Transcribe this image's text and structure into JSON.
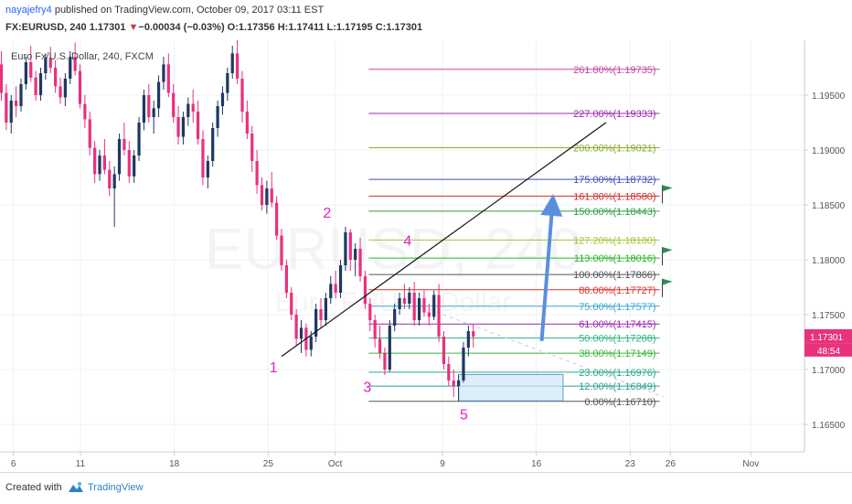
{
  "header": {
    "author": "nayajefry4",
    "published": " published on TradingView.com, October 09, 2017 03:11 EST",
    "symbol": "FX:EURUSD, 240",
    "last": "1.17301",
    "change": "−0.00034 (−0.03%)",
    "ohlc": "O:1.17356 H:1.17411 L:1.17195 C:1.17301"
  },
  "footer": {
    "created_with": "Created with",
    "brand": "TradingView"
  },
  "chart_data": {
    "type": "candlestick",
    "title": "Euro Fx/U.S. Dollar, 240, FXCM",
    "watermark": "EURUSD, 240",
    "watermark_sub": "Euro Fx/U.S. Dollar",
    "x_ticks": [
      "6",
      "11",
      "18",
      "25",
      "Oct",
      "9",
      "16",
      "23",
      "26",
      "Nov"
    ],
    "x_tick_days": [
      -24,
      -19,
      -12,
      -5,
      0,
      8,
      15,
      22,
      25,
      31
    ],
    "xlim": [
      -25,
      35
    ],
    "y_ticks": [
      "1.19500",
      "1.19000",
      "1.18500",
      "1.18000",
      "1.17500",
      "1.17000",
      "1.16500"
    ],
    "ylim": [
      1.1625,
      1.2
    ],
    "current_price": "1.17301",
    "countdown": "48:54",
    "colors": {
      "up": "#1f3864",
      "down": "#e8327c",
      "price_tag": "#e8327c"
    },
    "candles": [
      [
        1.1978,
        1.199,
        1.1945,
        1.1952
      ],
      [
        1.1952,
        1.196,
        1.1918,
        1.1925
      ],
      [
        1.1925,
        1.195,
        1.1915,
        1.1945
      ],
      [
        1.1945,
        1.1958,
        1.193,
        1.194
      ],
      [
        1.194,
        1.1965,
        1.1935,
        1.196
      ],
      [
        1.196,
        1.1985,
        1.1955,
        1.198
      ],
      [
        1.198,
        1.1995,
        1.1962,
        1.1966
      ],
      [
        1.1966,
        1.1972,
        1.1945,
        1.195
      ],
      [
        1.195,
        1.1975,
        1.1945,
        1.197
      ],
      [
        1.197,
        1.1988,
        1.1964,
        1.1984
      ],
      [
        1.1984,
        1.1994,
        1.197,
        1.1975
      ],
      [
        1.1975,
        1.1982,
        1.1952,
        1.1958
      ],
      [
        1.1958,
        1.1966,
        1.1942,
        1.1948
      ],
      [
        1.1948,
        1.197,
        1.194,
        1.1965
      ],
      [
        1.1965,
        1.199,
        1.196,
        1.1985
      ],
      [
        1.1985,
        1.1998,
        1.1968,
        1.1972
      ],
      [
        1.1972,
        1.1978,
        1.1938,
        1.1942
      ],
      [
        1.1942,
        1.195,
        1.192,
        1.1928
      ],
      [
        1.1928,
        1.1935,
        1.1895,
        1.1902
      ],
      [
        1.1902,
        1.1908,
        1.187,
        1.1878
      ],
      [
        1.1878,
        1.19,
        1.1872,
        1.1895
      ],
      [
        1.1895,
        1.191,
        1.1878,
        1.1882
      ],
      [
        1.1882,
        1.189,
        1.1858,
        1.1865
      ],
      [
        1.1865,
        1.1885,
        1.183,
        1.1878
      ],
      [
        1.1878,
        1.1915,
        1.1872,
        1.191
      ],
      [
        1.191,
        1.1925,
        1.1895,
        1.19
      ],
      [
        1.19,
        1.1908,
        1.187,
        1.1876
      ],
      [
        1.1876,
        1.19,
        1.187,
        1.1895
      ],
      [
        1.1895,
        1.193,
        1.189,
        1.1925
      ],
      [
        1.1925,
        1.1955,
        1.1918,
        1.195
      ],
      [
        1.195,
        1.196,
        1.1925,
        1.193
      ],
      [
        1.193,
        1.1945,
        1.1915,
        1.1938
      ],
      [
        1.1938,
        1.1968,
        1.193,
        1.1962
      ],
      [
        1.1962,
        1.1985,
        1.1955,
        1.1978
      ],
      [
        1.1978,
        1.1988,
        1.1948,
        1.1952
      ],
      [
        1.1952,
        1.196,
        1.1925,
        1.193
      ],
      [
        1.193,
        1.194,
        1.1905,
        1.1912
      ],
      [
        1.1912,
        1.1935,
        1.1905,
        1.193
      ],
      [
        1.193,
        1.1948,
        1.1922,
        1.1942
      ],
      [
        1.1942,
        1.1955,
        1.1925,
        1.1935
      ],
      [
        1.1935,
        1.1945,
        1.1905,
        1.191
      ],
      [
        1.191,
        1.1918,
        1.1868,
        1.1875
      ],
      [
        1.1875,
        1.1895,
        1.1865,
        1.189
      ],
      [
        1.189,
        1.1925,
        1.1885,
        1.192
      ],
      [
        1.192,
        1.1945,
        1.1912,
        1.194
      ],
      [
        1.194,
        1.1958,
        1.1932,
        1.1952
      ],
      [
        1.1952,
        1.1975,
        1.1945,
        1.197
      ],
      [
        1.197,
        1.1995,
        1.1965,
        1.1988
      ],
      [
        1.1988,
        1.2,
        1.196,
        1.1965
      ],
      [
        1.1965,
        1.1972,
        1.1925,
        1.1935
      ],
      [
        1.1935,
        1.1945,
        1.191,
        1.1915
      ],
      [
        1.1915,
        1.1922,
        1.188,
        1.189
      ],
      [
        1.189,
        1.19,
        1.186,
        1.1868
      ],
      [
        1.1868,
        1.1875,
        1.1845,
        1.185
      ],
      [
        1.185,
        1.1872,
        1.1842,
        1.1865
      ],
      [
        1.1865,
        1.188,
        1.1848,
        1.1852
      ],
      [
        1.1852,
        1.1858,
        1.1818,
        1.1822
      ],
      [
        1.1822,
        1.1828,
        1.179,
        1.1795
      ],
      [
        1.1795,
        1.18,
        1.1765,
        1.177
      ],
      [
        1.177,
        1.1775,
        1.1745,
        1.175
      ],
      [
        1.175,
        1.1755,
        1.1722,
        1.1728
      ],
      [
        1.1728,
        1.1745,
        1.1715,
        1.1738
      ],
      [
        1.1738,
        1.1742,
        1.1712,
        1.1718
      ],
      [
        1.1718,
        1.1735,
        1.1712,
        1.173
      ],
      [
        1.173,
        1.176,
        1.1725,
        1.1755
      ],
      [
        1.1755,
        1.1765,
        1.1738,
        1.1745
      ],
      [
        1.1745,
        1.177,
        1.174,
        1.1765
      ],
      [
        1.1765,
        1.1785,
        1.176,
        1.1778
      ],
      [
        1.1778,
        1.179,
        1.1765,
        1.177
      ],
      [
        1.177,
        1.18,
        1.1765,
        1.1795
      ],
      [
        1.1795,
        1.183,
        1.179,
        1.1825
      ],
      [
        1.1825,
        1.1828,
        1.179,
        1.18
      ],
      [
        1.18,
        1.1815,
        1.1785,
        1.181
      ],
      [
        1.181,
        1.182,
        1.178,
        1.1785
      ],
      [
        1.1785,
        1.179,
        1.1755,
        1.176
      ],
      [
        1.176,
        1.1765,
        1.1735,
        1.1745
      ],
      [
        1.1745,
        1.175,
        1.172,
        1.1728
      ],
      [
        1.1728,
        1.174,
        1.171,
        1.1715
      ],
      [
        1.1715,
        1.172,
        1.1695,
        1.17
      ],
      [
        1.17,
        1.1745,
        1.1698,
        1.174
      ],
      [
        1.174,
        1.176,
        1.1735,
        1.1755
      ],
      [
        1.1755,
        1.177,
        1.175,
        1.1765
      ],
      [
        1.1765,
        1.1778,
        1.1755,
        1.176
      ],
      [
        1.176,
        1.1775,
        1.1755,
        1.177
      ],
      [
        1.177,
        1.178,
        1.174,
        1.1745
      ],
      [
        1.1745,
        1.177,
        1.174,
        1.1765
      ],
      [
        1.1765,
        1.1772,
        1.1748,
        1.1752
      ],
      [
        1.1752,
        1.176,
        1.174,
        1.1748
      ],
      [
        1.1748,
        1.1772,
        1.1745,
        1.1768
      ],
      [
        1.1768,
        1.1778,
        1.1725,
        1.173
      ],
      [
        1.173,
        1.1735,
        1.17,
        1.1705
      ],
      [
        1.1705,
        1.1712,
        1.1685,
        1.169
      ],
      [
        1.169,
        1.17,
        1.1675,
        1.1685
      ],
      [
        1.1685,
        1.1695,
        1.1671,
        1.169
      ],
      [
        1.169,
        1.1725,
        1.1688,
        1.172
      ],
      [
        1.172,
        1.174,
        1.1712,
        1.1735
      ],
      [
        1.1735,
        1.1741,
        1.172,
        1.173
      ]
    ],
    "fib_levels": [
      {
        "label": "261.80%(1.19735)",
        "price": 1.19735,
        "color": "#c2499f"
      },
      {
        "label": "227.00%(1.19333)",
        "price": 1.19333,
        "color": "#9c27b0"
      },
      {
        "label": "200.00%(1.19021)",
        "price": 1.19021,
        "color": "#8bab2a"
      },
      {
        "label": "175.00%(1.18732)",
        "price": 1.18732,
        "color": "#3f51b5"
      },
      {
        "label": "161.80%(1.18580)",
        "price": 1.1858,
        "color": "#d32f2f"
      },
      {
        "label": "150.00%(1.18443)",
        "price": 1.18443,
        "color": "#2e9e3e"
      },
      {
        "label": "127.20%(1.18180)",
        "price": 1.1818,
        "color": "#a3c63a"
      },
      {
        "label": "113.00%(1.18016)",
        "price": 1.18016,
        "color": "#28b828"
      },
      {
        "label": "100.00%(1.17866)",
        "price": 1.17866,
        "color": "#555555"
      },
      {
        "label": "88.00%(1.17727)",
        "price": 1.17727,
        "color": "#e0312d"
      },
      {
        "label": "75.00%(1.17577)",
        "price": 1.17577,
        "color": "#3aa6d6"
      },
      {
        "label": "61.00%(1.17415)",
        "price": 1.17415,
        "color": "#9c27b0"
      },
      {
        "label": "50.00%(1.17288)",
        "price": 1.17288,
        "color": "#2eb880"
      },
      {
        "label": "38.00%(1.17149)",
        "price": 1.17149,
        "color": "#3ab83a"
      },
      {
        "label": "23.00%(1.16976)",
        "price": 1.16976,
        "color": "#2ea88e"
      },
      {
        "label": "12.00%(1.16849)",
        "price": 1.16849,
        "color": "#2e9e96"
      },
      {
        "label": "0.00%(1.16710)",
        "price": 1.1671,
        "color": "#555555"
      }
    ],
    "fib_range_days": [
      2.5,
      24.2
    ],
    "wave_labels": [
      {
        "text": "1",
        "day": -4.6,
        "price": 1.16975
      },
      {
        "text": "2",
        "day": -0.6,
        "price": 1.18385
      },
      {
        "text": "3",
        "day": 2.4,
        "price": 1.16795
      },
      {
        "text": "4",
        "day": 5.4,
        "price": 1.1813
      },
      {
        "text": "5",
        "day": 9.6,
        "price": 1.16545
      }
    ],
    "trendline": {
      "from": [
        -4.0,
        1.1712
      ],
      "to": [
        20.2,
        1.1925
      ]
    },
    "dashed_line": {
      "from": [
        7.0,
        1.1755
      ],
      "to": [
        24.5,
        1.1675
      ]
    },
    "rectangle": {
      "from": [
        9.2,
        1.16955
      ],
      "to": [
        17.0,
        1.16715
      ]
    },
    "arrow": {
      "from": [
        15.4,
        1.1726
      ],
      "to": [
        16.2,
        1.185
      ]
    },
    "flags": [
      {
        "day": 24.4,
        "price": 1.1858
      },
      {
        "day": 24.4,
        "price": 1.18016
      },
      {
        "day": 24.4,
        "price": 1.17727
      }
    ]
  }
}
